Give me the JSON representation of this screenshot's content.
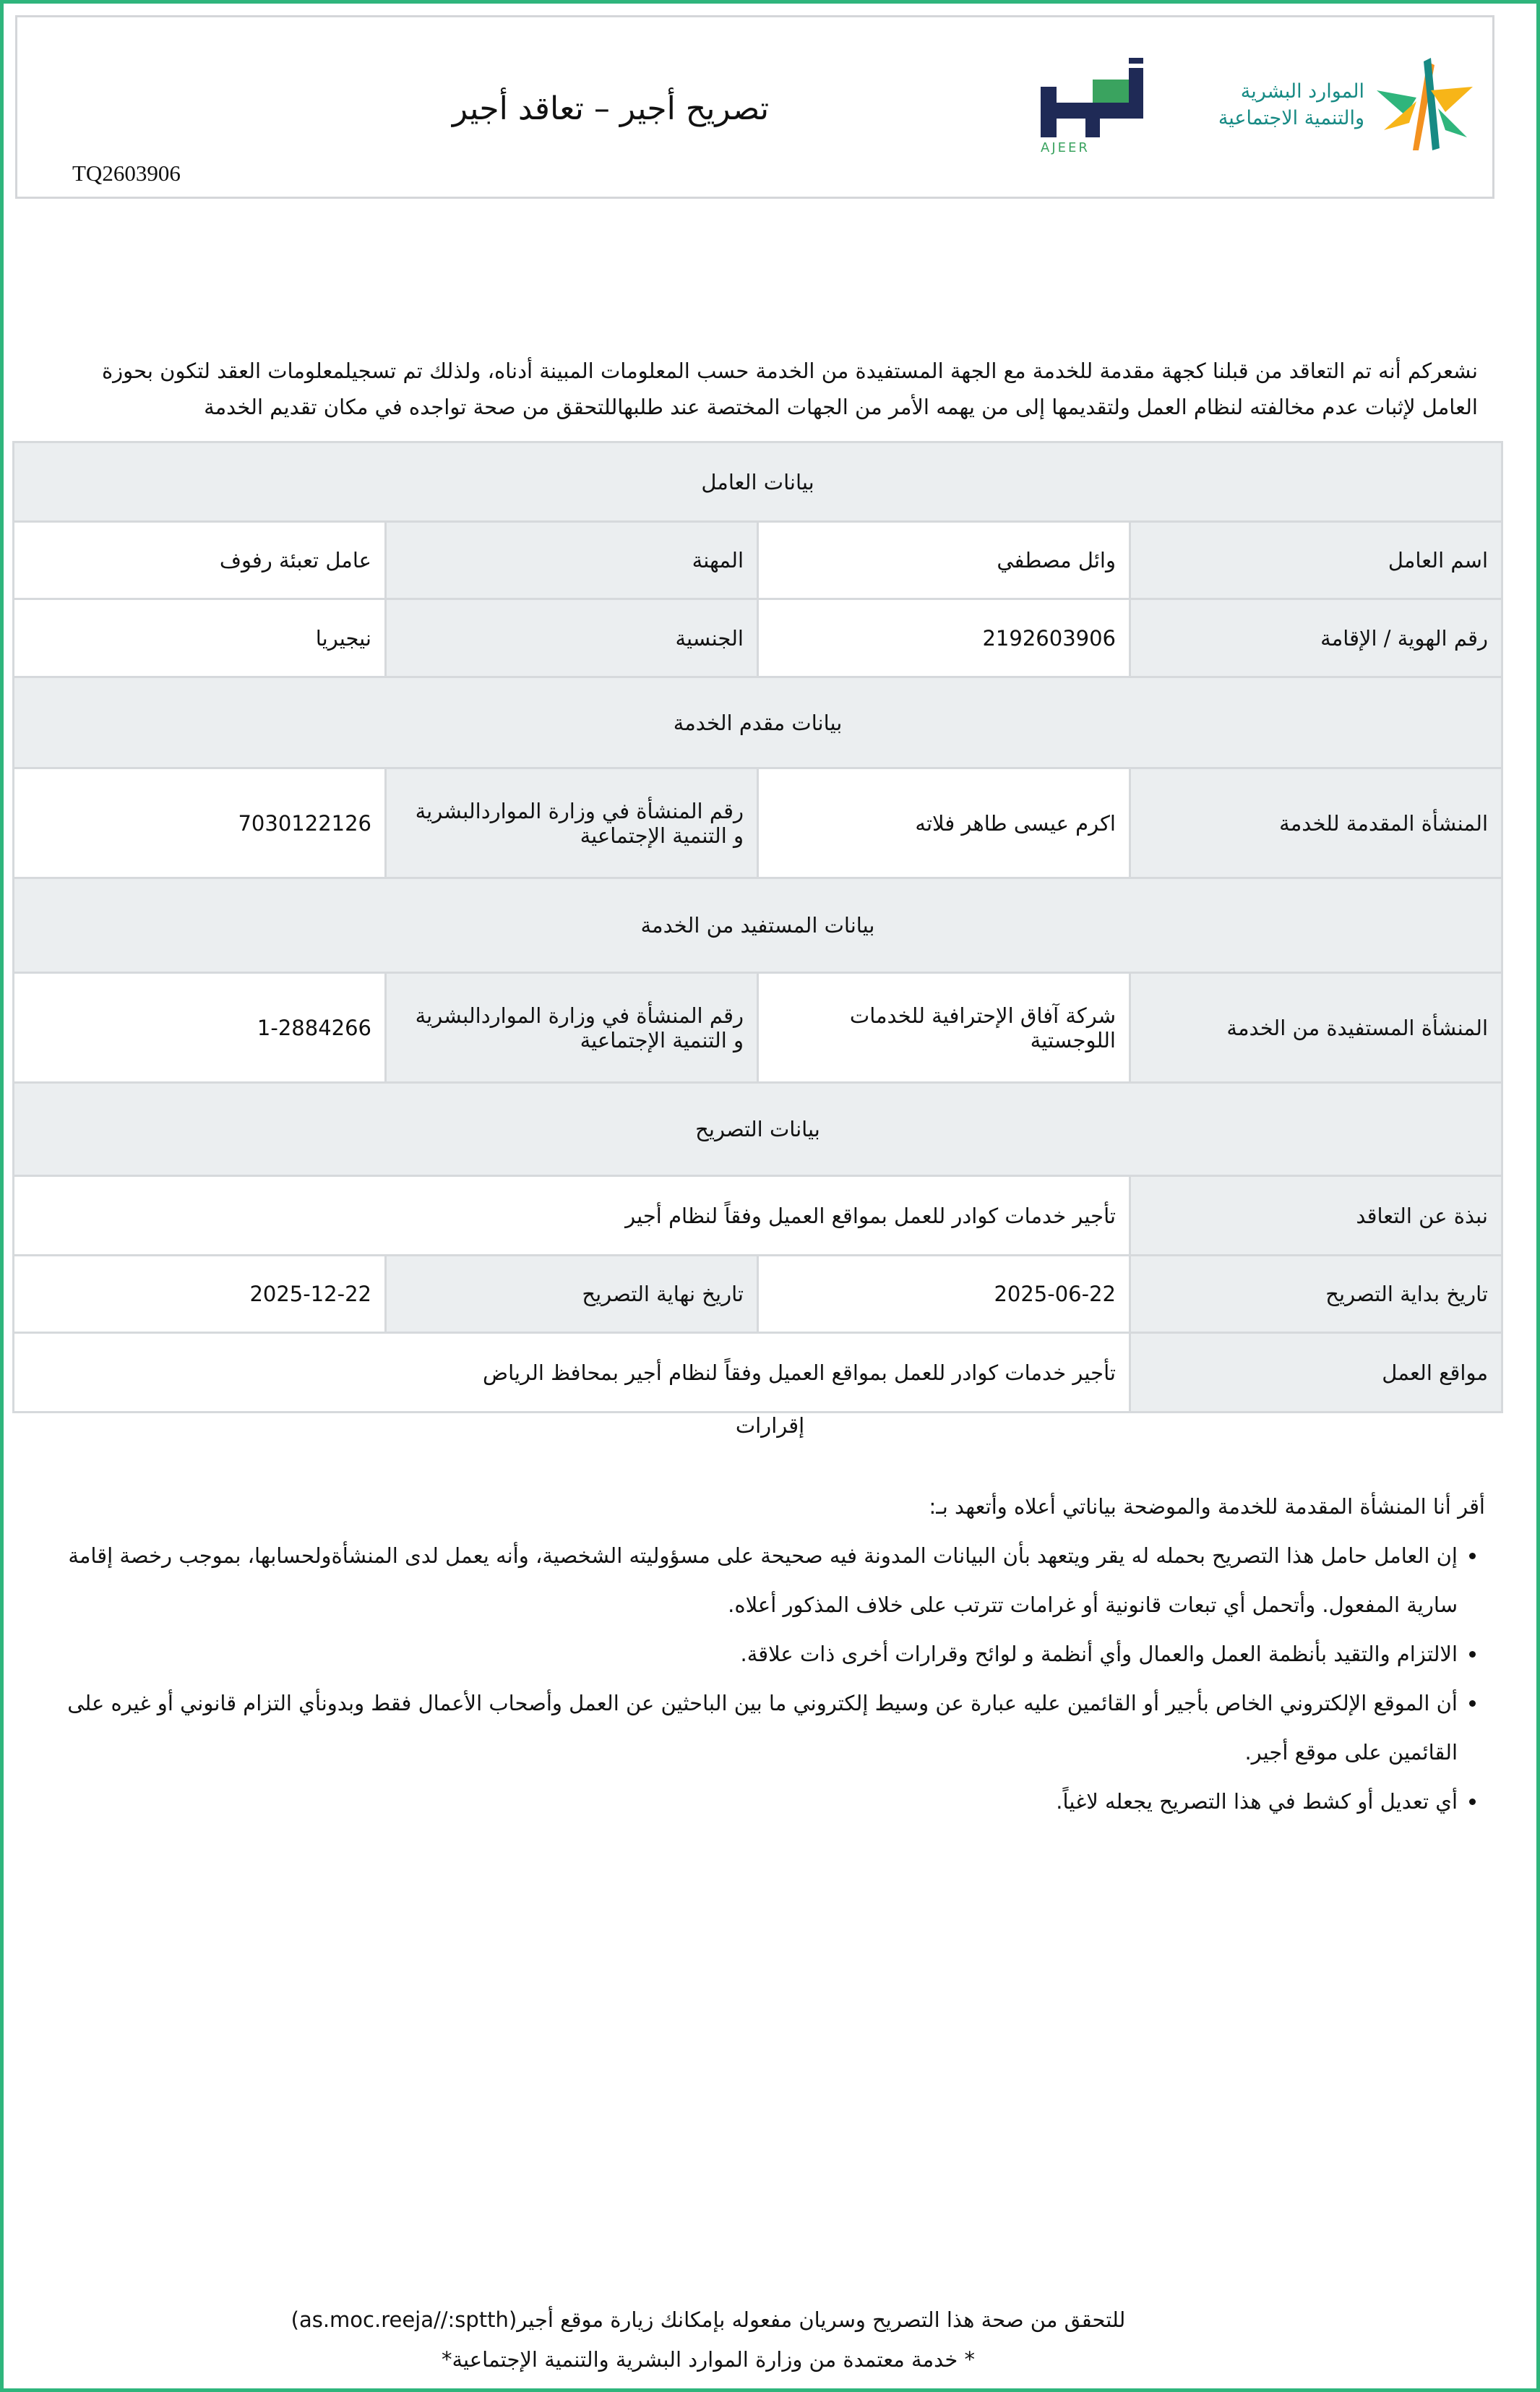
{
  "header": {
    "title": "تصريح أجير –  تعاقد أجير",
    "reference": "TQ2603906",
    "ministry_logo_text": [
      "الموارد البشرية",
      "والتنمية الاجتماعية"
    ],
    "ajeer_logo_text": "أجير",
    "ajeer_logo_latin": "AJEER"
  },
  "intro": "نشعركم أنه تم التعاقد من قبلنا كجهة مقدمة للخدمة مع الجهة المستفيدة من الخدمة حسب المعلومات المبينة أدناه، ولذلك تم تسجيلمعلومات العقد لتكون بحوزة العامل لإثبات عدم مخالفته لنظام العمل ولتقديمها إلى من يهمه الأمر من الجهات المختصة عند طلبهاللتحقق من صحة تواجده في مكان تقديم الخدمة",
  "worker": {
    "section": "بيانات العامل",
    "name_label": "اسم العامل",
    "name": "وائل مصطفي",
    "job_label": "المهنة",
    "job": "عامل تعبئة رفوف",
    "id_label": "رقم الهوية / الإقامة",
    "id": "2192603906",
    "nationality_label": "الجنسية",
    "nationality": "نيجيريا"
  },
  "provider": {
    "section": "بيانات مقدم الخدمة",
    "org_label": "المنشأة المقدمة للخدمة",
    "org": "اكرم عيسى طاهر فلاته",
    "reg_label": "رقم المنشأة في وزارة المواردالبشرية و التنمية الإجتماعية",
    "reg": "7030122126"
  },
  "beneficiary": {
    "section": "بيانات المستفيد من الخدمة",
    "org_label": "المنشأة المستفيدة من الخدمة",
    "org": "شركة آفاق الإحترافية للخدمات اللوجستية",
    "reg_label": "رقم المنشأة في وزارة المواردالبشرية و التنمية الإجتماعية",
    "reg": "1-2884266"
  },
  "permit": {
    "section": "بيانات التصريح",
    "summary_label": "نبذة عن التعاقد",
    "summary": "تأجير خدمات كوادر للعمل بمواقع العميل وفقاً لنظام أجير",
    "start_label": "تاريخ بداية التصريح",
    "start": "2025-06-22",
    "end_label": "تاريخ نهاية التصريح",
    "end": "2025-12-22",
    "locations_label": "مواقع العمل",
    "locations": "تأجير خدمات كوادر للعمل بمواقع العميل وفقاً لنظام أجير بمحافظ الرياض"
  },
  "declarations": {
    "title": "إقرارات",
    "intro": "أقر أنا المنشأة المقدمة للخدمة والموضحة بياناتي أعلاه وأتعهد بـ:",
    "items": [
      "إن العامل حامل هذا التصريح بحمله له يقر ويتعهد بأن البيانات المدونة فيه صحيحة على مسؤوليته الشخصية، وأنه يعمل لدى المنشأةولحسابها، بموجب رخصة إقامة سارية المفعول. وأتحمل أي تبعات قانونية أو غرامات تترتب على خلاف المذكور أعلاه.",
      "الالتزام والتقيد بأنظمة العمل والعمال وأي أنظمة و لوائح وقرارات أخرى ذات علاقة.",
      "أن الموقع الإلكتروني الخاص بأجير أو القائمين عليه عبارة عن وسيط إلكتروني ما بين الباحثين عن العمل وأصحاب الأعمال فقط وبدونأي التزام قانوني أو غيره على القائمين على موقع أجير.",
      "أي تعديل أو كشط في هذا التصريح يجعله لاغياً."
    ]
  },
  "footer": {
    "verify": "للتحقق من صحة هذا التصريح وسريان مفعوله بإمكانك زيارة موقع أجير(as.moc.reeja//:sptth)",
    "note": "* خدمة معتمدة من وزارة الموارد البشرية والتنمية الإجتماعية*"
  },
  "colors": {
    "frame": "#2fb57c",
    "label_bg": "#ebeef0",
    "ajeer_navy": "#1f2a56",
    "ajeer_green": "#3aa35f",
    "ministry_teal": "#178a84",
    "ministry_orange": "#f3911f",
    "ministry_yellow": "#f7b518"
  }
}
